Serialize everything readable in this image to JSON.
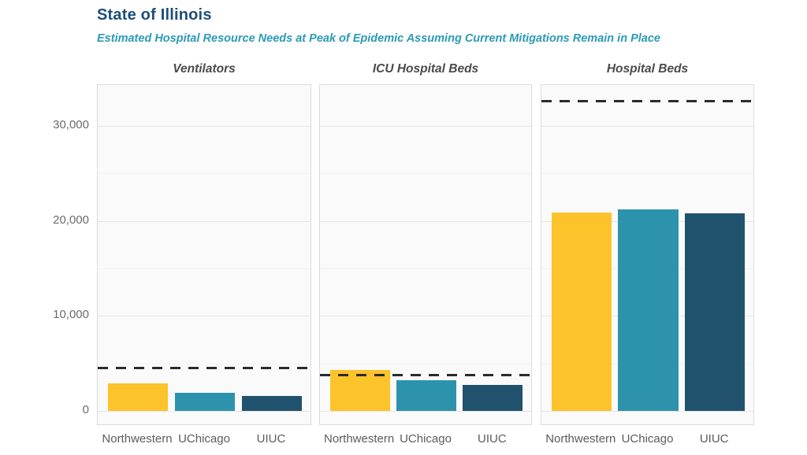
{
  "header": {
    "title": "State of Illinois",
    "subtitle": "Estimated Hospital Resource Needs at Peak of Epidemic Assuming Current Mitigations Remain in Place"
  },
  "chart_data": {
    "type": "bar",
    "title": "State of Illinois",
    "subtitle": "Estimated Hospital Resource Needs at Peak of Epidemic Assuming Current Mitigations Remain in Place",
    "layout": "three faceted panels sharing one y-axis, horizontal gridlines, no legend",
    "categories": [
      "Northwestern",
      "UChicago",
      "UIUC"
    ],
    "y_ticks": [
      0,
      10000,
      20000,
      30000
    ],
    "y_tick_labels": [
      "0",
      "10,000",
      "20,000",
      "30,000"
    ],
    "ylim": [
      -1600,
      34300
    ],
    "grid": "major lines every 10,000; faint minor lines every 5,000",
    "facets": [
      {
        "label": "Ventilators",
        "values": [
          2900,
          1900,
          1550
        ],
        "capacity_line": 4500
      },
      {
        "label": "ICU Hospital Beds",
        "values": [
          4300,
          3200,
          2700
        ],
        "capacity_line": 3800
      },
      {
        "label": "Hospital Beds",
        "values": [
          20900,
          21200,
          20800
        ],
        "capacity_line": 32600
      }
    ],
    "capacity_line_style": "black dashed horizontal line per panel",
    "series_colors": {
      "Northwestern": "#FDC32B",
      "UChicago": "#2D93AD",
      "UIUC": "#21526D"
    }
  },
  "colors": {
    "title": "#1E4E79",
    "subtitle": "#2C9AB7",
    "facet_title": "#4A4A4A",
    "y_axis_label": "#6B6B6B",
    "x_axis_label": "#5C5C5C",
    "bar_northwestern": "#FDC32B",
    "bar_uchicago": "#2D93AD",
    "bar_uiuc": "#21526D",
    "capacity_line": "#2B2B2B",
    "panel_background": "#FAFAFA",
    "panel_border": "#DCDCDC",
    "gridline_major": "#E6E6E6",
    "gridline_minor": "#F2F2F2"
  }
}
